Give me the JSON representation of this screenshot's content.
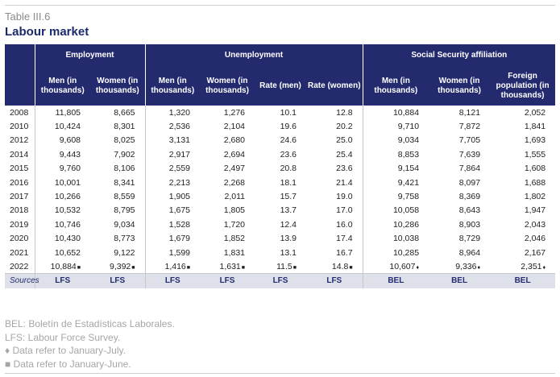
{
  "header": {
    "table_number": "Table III.6",
    "title": "Labour market"
  },
  "groups": {
    "employment": "Employment",
    "unemployment": "Unemployment",
    "social_security": "Social Security affiliation"
  },
  "columns": [
    "Men (in thousands)",
    "Women (in thousands)",
    "Men (in thousands)",
    "Women (in thousands)",
    "Rate (men)",
    "Rate (women)",
    "Men (in thousands)",
    "Women (in thousands)",
    "Foreign population (in thousands)"
  ],
  "rows": [
    {
      "year": "2008",
      "values": [
        "11,805",
        "8,665",
        "1,320",
        "1,276",
        "10.1",
        "12.8",
        "10,884",
        "8,121",
        "2,052"
      ]
    },
    {
      "year": "2010",
      "values": [
        "10,424",
        "8,301",
        "2,536",
        "2,104",
        "19.6",
        "20.2",
        "9,710",
        "7,872",
        "1,841"
      ]
    },
    {
      "year": "2012",
      "values": [
        "9,608",
        "8,025",
        "3,131",
        "2,680",
        "24.6",
        "25.0",
        "9,034",
        "7,705",
        "1,693"
      ]
    },
    {
      "year": "2014",
      "values": [
        "9,443",
        "7,902",
        "2,917",
        "2,694",
        "23.6",
        "25.4",
        "8,853",
        "7,639",
        "1,555"
      ]
    },
    {
      "year": "2015",
      "values": [
        "9,760",
        "8,106",
        "2,559",
        "2,497",
        "20.8",
        "23.6",
        "9,154",
        "7,864",
        "1,608"
      ]
    },
    {
      "year": "2016",
      "values": [
        "10,001",
        "8,341",
        "2,213",
        "2,268",
        "18.1",
        "21.4",
        "9,421",
        "8,097",
        "1,688"
      ]
    },
    {
      "year": "2017",
      "values": [
        "10,266",
        "8,559",
        "1,905",
        "2,011",
        "15.7",
        "19.0",
        "9,758",
        "8,369",
        "1,802"
      ]
    },
    {
      "year": "2018",
      "values": [
        "10,532",
        "8,795",
        "1,675",
        "1,805",
        "13.7",
        "17.0",
        "10,058",
        "8,643",
        "1,947"
      ]
    },
    {
      "year": "2019",
      "values": [
        "10,746",
        "9,034",
        "1,528",
        "1,720",
        "12.4",
        "16.0",
        "10,286",
        "8,903",
        "2,043"
      ]
    },
    {
      "year": "2020",
      "values": [
        "10,430",
        "8,773",
        "1,679",
        "1,852",
        "13.9",
        "17.4",
        "10,038",
        "8,729",
        "2,046"
      ]
    },
    {
      "year": "2021",
      "values": [
        "10,652",
        "9,122",
        "1,599",
        "1,831",
        "13.1",
        "16.7",
        "10,285",
        "8,964",
        "2,167"
      ]
    },
    {
      "year": "2022",
      "values": [
        "10,884",
        "9,392",
        "1,416",
        "1,631",
        "11.5",
        "14.8",
        "10,607",
        "9,336",
        "2,351"
      ],
      "markers": [
        "■",
        "■",
        "■",
        "■",
        "■",
        "■",
        "♦",
        "♦",
        "♦"
      ]
    }
  ],
  "sources": {
    "label": "Sources",
    "values": [
      "LFS",
      "LFS",
      "LFS",
      "LFS",
      "LFS",
      "LFS",
      "BEL",
      "BEL",
      "BEL"
    ]
  },
  "notes": {
    "bel": "BEL: Boletín de Estadísticas Laborales.",
    "lfs": "LFS: Labour Force Survey.",
    "diamond": "♦ Data refer to January-July.",
    "square": "■ Data refer to January-June."
  }
}
